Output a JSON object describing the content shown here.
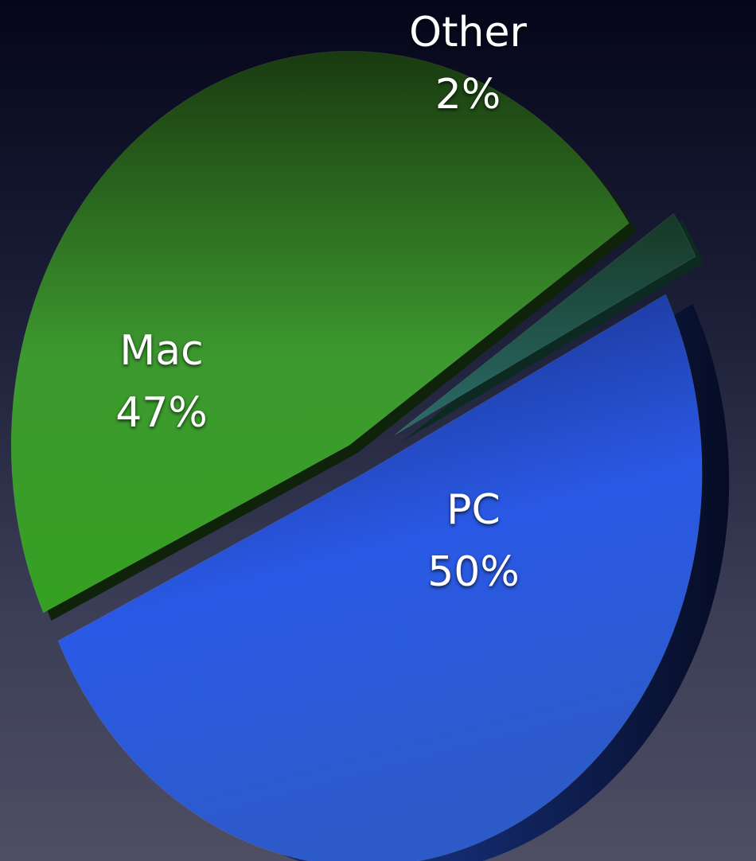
{
  "chart_data": {
    "type": "pie",
    "title": "",
    "slices": [
      {
        "label": "PC",
        "value": 50,
        "value_label": "50%",
        "color": "#2c5fe0"
      },
      {
        "label": "Mac",
        "value": 47,
        "value_label": "47%",
        "color": "#3a9a2a"
      },
      {
        "label": "Other",
        "value": 2,
        "value_label": "2%",
        "color": "#1f5a5a"
      }
    ],
    "style": "3d-exploded",
    "legend": "none"
  }
}
